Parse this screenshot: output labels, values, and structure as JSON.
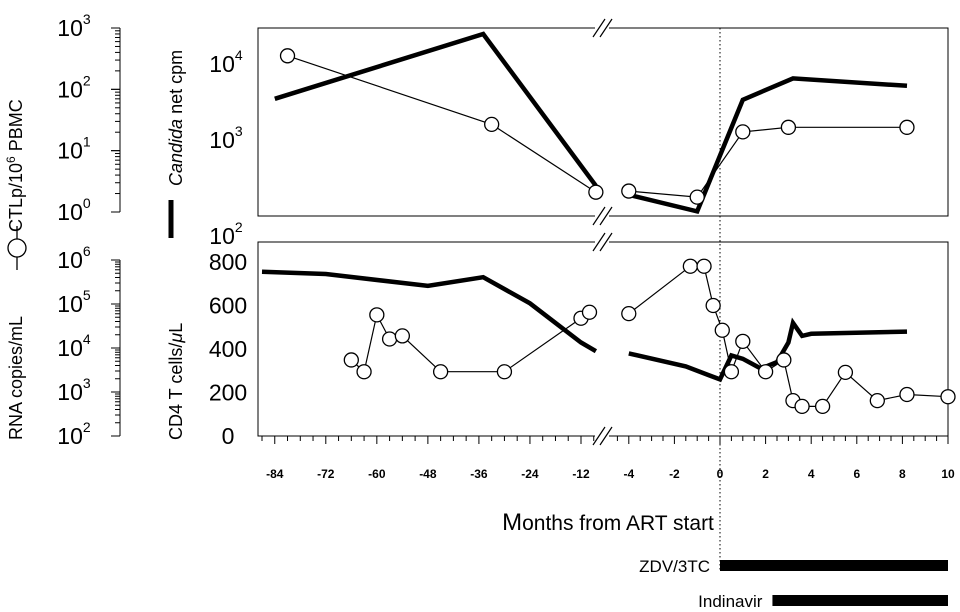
{
  "chart_data": [
    {
      "panel": "top",
      "type": "line",
      "y_axes": [
        {
          "side": "left-outer",
          "label_prefix": "CTLp/10",
          "label_exp": "6",
          "label_suffix": " PBMC",
          "scale": "log",
          "ylim": [
            1,
            1000
          ],
          "ticks": [
            {
              "base": "10",
              "exp": "3"
            },
            {
              "base": "10",
              "exp": "2"
            },
            {
              "base": "10",
              "exp": "1"
            },
            {
              "base": "10",
              "exp": "0"
            }
          ]
        },
        {
          "side": "left-inner",
          "label_italic": "Candida",
          "label_rest": " net cpm",
          "scale": "log",
          "ylim": [
            100,
            30000
          ],
          "ticks": [
            {
              "base": "10",
              "exp": "4"
            },
            {
              "base": "10",
              "exp": "3"
            },
            {
              "base": "10",
              "exp": "2"
            }
          ]
        }
      ],
      "series": [
        {
          "marker": "open-circle",
          "style": "thin",
          "axis": "CTLp",
          "segments": [
            [
              [
                -81,
                360
              ],
              [
                -33,
                29
              ],
              [
                -8.5,
                2.4
              ]
            ],
            [
              [
                -4,
                2.5
              ],
              [
                -1.0,
                2.0
              ],
              [
                1.0,
                22
              ],
              [
                3.0,
                26
              ],
              [
                8.2,
                26
              ]
            ]
          ]
        },
        {
          "marker": "none",
          "style": "thick",
          "axis": "Candida",
          "segments": [
            [
              [
                -84,
                3500
              ],
              [
                -35,
                25000
              ],
              [
                -8.5,
                250
              ]
            ],
            [
              [
                -4,
                190
              ],
              [
                -1.0,
                115
              ],
              [
                1.0,
                3400
              ],
              [
                3.2,
                6500
              ],
              [
                8.2,
                5200
              ]
            ]
          ]
        }
      ]
    },
    {
      "panel": "bottom",
      "type": "line",
      "y_axes": [
        {
          "side": "left-outer",
          "label": "RNA copies/mL",
          "scale": "log",
          "ylim": [
            100,
            1000000
          ],
          "ticks": [
            {
              "base": "10",
              "exp": "6"
            },
            {
              "base": "10",
              "exp": "5"
            },
            {
              "base": "10",
              "exp": "4"
            },
            {
              "base": "10",
              "exp": "3"
            },
            {
              "base": "10",
              "exp": "2"
            }
          ]
        },
        {
          "side": "left-inner",
          "label_main": "CD4 T cells/",
          "label_greek": "μ",
          "label_end": "L",
          "scale": "linear",
          "ylim": [
            0,
            800
          ],
          "ticks": [
            "800",
            "600",
            "400",
            "200",
            "0"
          ]
        }
      ],
      "series": [
        {
          "marker": "open-circle",
          "style": "thin",
          "axis": "RNA",
          "segments": [
            [
              [
                -66,
                5600
              ],
              [
                -63,
                3000
              ],
              [
                -60,
                61000
              ],
              [
                -57,
                17000
              ],
              [
                -54,
                20000
              ],
              [
                -45,
                3000
              ],
              [
                -30,
                3000
              ],
              [
                -12,
                51000
              ],
              [
                -10,
                70000
              ]
            ],
            [
              [
                -4,
                65000
              ],
              [
                -1.3,
                800000
              ],
              [
                -0.7,
                800000
              ],
              [
                -0.3,
                100000
              ],
              [
                0.1,
                27000
              ],
              [
                0.5,
                3000
              ],
              [
                1.0,
                15000
              ],
              [
                2.0,
                3000
              ],
              [
                2.8,
                5600
              ],
              [
                3.2,
                650
              ],
              [
                3.6,
                480
              ],
              [
                4.5,
                480
              ],
              [
                5.5,
                2900
              ],
              [
                6.9,
                650
              ],
              [
                8.2,
                900
              ],
              [
                10,
                800
              ]
            ]
          ]
        },
        {
          "marker": "none",
          "style": "thick",
          "axis": "CD4",
          "segments": [
            [
              [
                -87,
                755
              ],
              [
                -72,
                745
              ],
              [
                -48,
                690
              ],
              [
                -35,
                730
              ],
              [
                -24,
                610
              ],
              [
                -12,
                430
              ],
              [
                -8.5,
                390
              ]
            ],
            [
              [
                -4,
                380
              ],
              [
                -1.5,
                320
              ],
              [
                -0.5,
                280
              ],
              [
                0,
                260
              ],
              [
                0.5,
                370
              ],
              [
                1,
                355
              ],
              [
                1.8,
                310
              ],
              [
                2.5,
                340
              ],
              [
                3.0,
                430
              ],
              [
                3.2,
                520
              ],
              [
                3.6,
                460
              ],
              [
                4.0,
                470
              ],
              [
                8.2,
                480
              ]
            ]
          ]
        }
      ]
    }
  ],
  "x_axis": {
    "label_first": "M",
    "label_rest": "onths from ART start",
    "break_between": [
      -8,
      -5
    ],
    "left_ticks": [
      "-84",
      "-72",
      "-60",
      "-48",
      "-36",
      "-24",
      "-12"
    ],
    "right_ticks": [
      "-4",
      "-2",
      "0",
      "2",
      "4",
      "6",
      "8",
      "10"
    ],
    "art_start": 0
  },
  "drug_bars": [
    {
      "label": "ZDV/3TC",
      "start": 0,
      "end": 10
    },
    {
      "label": "Indinavir",
      "start": 2.3,
      "end": 10
    }
  ]
}
